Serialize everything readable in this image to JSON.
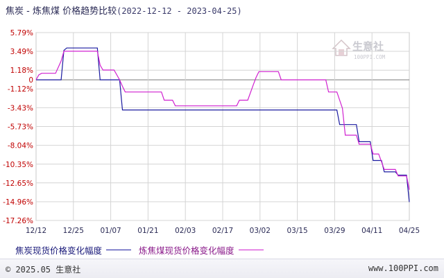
{
  "header": {
    "title": "焦炭 - 炼焦煤 价格趋势比较",
    "date_range": "(2022-12-12 - 2023-04-25)"
  },
  "watermark": {
    "name": "生意社",
    "url": "100PPI.COM"
  },
  "legend": {
    "coke_label": "焦炭现货价格变化幅度",
    "coal_label": "炼焦煤现货价格变化幅度"
  },
  "footer": {
    "copyright": "© 2025.05 生意社",
    "site": "www.100PPI.com"
  },
  "colors": {
    "coke": "#1a1aa0",
    "coal": "#d020d0",
    "axis_text_y": "#c00000",
    "axis_text_x": "#2a2a55",
    "grid": "#d4d4d4"
  },
  "chart_data": {
    "type": "line",
    "title": "焦炭 - 炼焦煤 价格趋势比较",
    "xlabel": "",
    "ylabel": "",
    "ylim": [
      -17.26,
      5.79
    ],
    "xlim": [
      "2022-12-12",
      "2023-04-25"
    ],
    "x_ticks": [
      "12/12",
      "12/25",
      "01/07",
      "01/21",
      "02/03",
      "02/17",
      "03/02",
      "03/15",
      "03/29",
      "04/11",
      "04/25"
    ],
    "y_ticks": [
      "5.79%",
      "3.49%",
      "1.18%",
      "0",
      "-1.12%",
      "-3.43%",
      "-5.73%",
      "-8.04%",
      "-10.35%",
      "-12.65%",
      "-14.96%",
      "-17.26%"
    ],
    "y_tick_values": [
      5.79,
      3.49,
      1.18,
      0,
      -1.12,
      -3.43,
      -5.73,
      -8.04,
      -10.35,
      -12.65,
      -14.96,
      -17.26
    ],
    "grid": true,
    "legend_position": "bottom",
    "series": [
      {
        "name": "焦炭现货价格变化幅度",
        "color": "#1a1aa0",
        "points": [
          [
            "2022-12-12",
            0
          ],
          [
            "2022-12-21",
            0
          ],
          [
            "2022-12-22",
            3.6
          ],
          [
            "2022-12-23",
            3.9
          ],
          [
            "2023-01-03",
            3.9
          ],
          [
            "2023-01-04",
            0
          ],
          [
            "2023-01-11",
            0
          ],
          [
            "2023-01-12",
            -3.7
          ],
          [
            "2023-03-30",
            -3.7
          ],
          [
            "2023-03-31",
            -5.5
          ],
          [
            "2023-04-06",
            -5.5
          ],
          [
            "2023-04-07",
            -7.6
          ],
          [
            "2023-04-11",
            -7.6
          ],
          [
            "2023-04-12",
            -9.9
          ],
          [
            "2023-04-15",
            -9.9
          ],
          [
            "2023-04-16",
            -11.3
          ],
          [
            "2023-04-20",
            -11.3
          ],
          [
            "2023-04-21",
            -11.7
          ],
          [
            "2023-04-24",
            -11.7
          ],
          [
            "2023-04-25",
            -15.0
          ]
        ]
      },
      {
        "name": "炼焦煤现货价格变化幅度",
        "color": "#d020d0",
        "points": [
          [
            "2022-12-12",
            0
          ],
          [
            "2022-12-13",
            0.6
          ],
          [
            "2022-12-14",
            0.8
          ],
          [
            "2022-12-19",
            0.8
          ],
          [
            "2022-12-21",
            2.3
          ],
          [
            "2022-12-22",
            3.5
          ],
          [
            "2023-01-03",
            3.5
          ],
          [
            "2023-01-04",
            1.8
          ],
          [
            "2023-01-05",
            1.2
          ],
          [
            "2023-01-09",
            1.2
          ],
          [
            "2023-01-11",
            0
          ],
          [
            "2023-01-12",
            -0.8
          ],
          [
            "2023-01-13",
            -1.5
          ],
          [
            "2023-01-26",
            -1.5
          ],
          [
            "2023-01-27",
            -2.5
          ],
          [
            "2023-01-30",
            -2.5
          ],
          [
            "2023-01-31",
            -3.2
          ],
          [
            "2023-02-22",
            -3.2
          ],
          [
            "2023-02-23",
            -2.5
          ],
          [
            "2023-02-26",
            -2.5
          ],
          [
            "2023-02-28",
            -0.6
          ],
          [
            "2023-03-01",
            0.3
          ],
          [
            "2023-03-02",
            1.0
          ],
          [
            "2023-03-09",
            1.0
          ],
          [
            "2023-03-10",
            0
          ],
          [
            "2023-03-26",
            0
          ],
          [
            "2023-03-27",
            -1.5
          ],
          [
            "2023-03-30",
            -1.5
          ],
          [
            "2023-04-01",
            -3.5
          ],
          [
            "2023-04-02",
            -6.8
          ],
          [
            "2023-04-06",
            -6.8
          ],
          [
            "2023-04-07",
            -7.9
          ],
          [
            "2023-04-11",
            -7.9
          ],
          [
            "2023-04-12",
            -9.1
          ],
          [
            "2023-04-14",
            -9.1
          ],
          [
            "2023-04-16",
            -11.0
          ],
          [
            "2023-04-20",
            -11.0
          ],
          [
            "2023-04-21",
            -11.8
          ],
          [
            "2023-04-24",
            -11.8
          ],
          [
            "2023-04-25",
            -13.5
          ]
        ]
      }
    ]
  }
}
